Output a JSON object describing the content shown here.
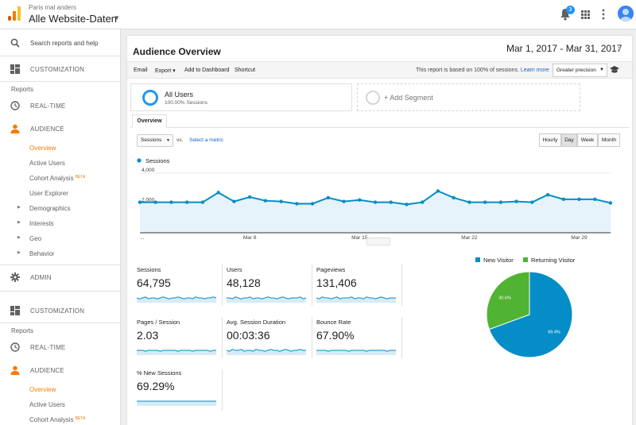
{
  "topbar": {
    "account_sub": "Paris mal anders",
    "account_main": "Alle Website-Daten",
    "notifications_count": "3"
  },
  "sidebar": {
    "search_label": "Search reports and help",
    "sections": [
      {
        "customization": "CUSTOMIZATION",
        "reports": "Reports",
        "realtime": "REAL-TIME",
        "audience": "AUDIENCE",
        "items": [
          "Overview",
          "Active Users",
          "Cohort Analysis",
          "User Explorer"
        ],
        "beta": "BETA",
        "groups": [
          "Demographics",
          "Interests",
          "Geo",
          "Behavior"
        ],
        "admin": "ADMIN"
      },
      {
        "customization": "CUSTOMIZATION",
        "reports": "Reports",
        "realtime": "REAL-TIME",
        "audience": "AUDIENCE",
        "items": [
          "Overview",
          "Active Users",
          "Cohort Analysis"
        ],
        "beta": "BETA"
      }
    ]
  },
  "main": {
    "title": "Audience Overview",
    "date_range": "Mar 1, 2017 - Mar 31, 2017",
    "toolbar": {
      "email": "Email",
      "export": "Export ▾",
      "add_dashboard": "Add to Dashboard",
      "shortcut": "Shortcut",
      "note": "This report is based on 100% of sessions.",
      "learn_more": "Learn more",
      "precision": "Greater precision"
    },
    "segment": {
      "name": "All Users",
      "pct": "100.00% Sessions",
      "add": "+ Add Segment"
    },
    "tab": "Overview",
    "metric_select": "Sessions",
    "vs": "vs.",
    "select_metric": "Select a metric",
    "granularity": [
      "Hourly",
      "Day",
      "Week",
      "Month"
    ],
    "granularity_selected": "Day"
  },
  "chart_data": [
    {
      "type": "area",
      "series": [
        {
          "name": "Sessions",
          "values": [
            2050,
            2050,
            2050,
            2050,
            2050,
            2700,
            2100,
            2400,
            2150,
            2100,
            1950,
            1950,
            2350,
            2100,
            2200,
            2050,
            2050,
            1900,
            2050,
            2800,
            2350,
            2050,
            2050,
            2050,
            2100,
            2050,
            2550,
            2250,
            2250,
            2250,
            2000
          ]
        }
      ],
      "x_labels": [
        "...",
        "Mar 8",
        "Mar 15",
        "Mar 22",
        "Mar 29"
      ],
      "y_ticks": [
        "4,000",
        "2,000"
      ],
      "ylim": [
        0,
        4000
      ],
      "color": "#058dc7",
      "fill": "#e6f3fa"
    },
    {
      "type": "pie",
      "categories": [
        "New Visitor",
        "Returning Visitor"
      ],
      "values": [
        69.4,
        30.6
      ],
      "labels": [
        "69.4%",
        "30.6%"
      ],
      "colors": [
        "#058dc7",
        "#50b432"
      ],
      "legend": "top"
    }
  ],
  "kpis": [
    {
      "label": "Sessions",
      "value": "64,795"
    },
    {
      "label": "Users",
      "value": "48,128"
    },
    {
      "label": "Pageviews",
      "value": "131,406"
    },
    {
      "label": "Pages / Session",
      "value": "2.03"
    },
    {
      "label": "Avg. Session Duration",
      "value": "00:03:36"
    },
    {
      "label": "Bounce Rate",
      "value": "67.90%"
    },
    {
      "label": "% New Sessions",
      "value": "69.29%"
    }
  ]
}
